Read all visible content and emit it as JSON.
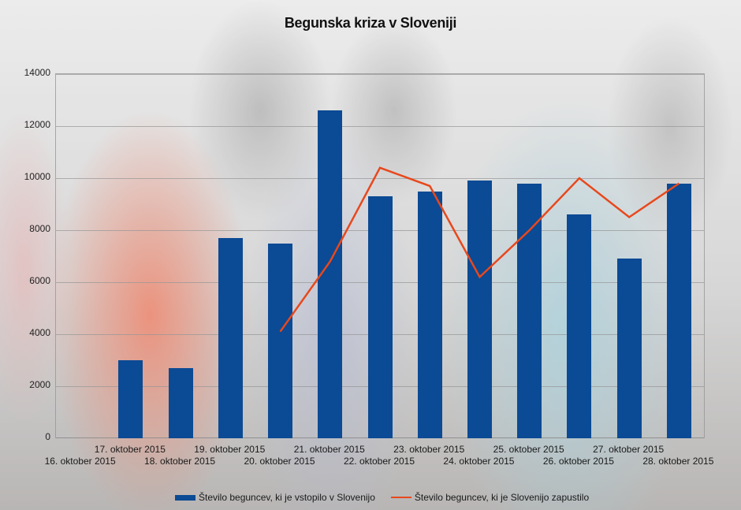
{
  "chart_data": {
    "type": "bar",
    "title": "Begunska kriza v Sloveniji",
    "xlabel": "",
    "ylabel": "",
    "ylim": [
      0,
      14000
    ],
    "yticks": [
      0,
      2000,
      4000,
      6000,
      8000,
      10000,
      12000,
      14000
    ],
    "grid": true,
    "legend_position": "bottom",
    "categories": [
      "16. oktober 2015",
      "17. oktober 2015",
      "18. oktober 2015",
      "19. oktober 2015",
      "20. oktober 2015",
      "21. oktober 2015",
      "22. oktober 2015",
      "23. oktober 2015",
      "24. oktober 2015",
      "25. oktober 2015",
      "26. oktober 2015",
      "27. oktober 2015",
      "28. oktober 2015"
    ],
    "series": [
      {
        "name": "Število beguncev, ki je vstopilo v Slovenijo",
        "type": "bar",
        "color": "#0b4a94",
        "values": [
          null,
          3000,
          2700,
          7700,
          7500,
          12600,
          9300,
          9500,
          9900,
          9800,
          8600,
          6900,
          9800
        ]
      },
      {
        "name": "Število beguncev, ki je Slovenijo zapustilo",
        "type": "line",
        "color": "#e8481c",
        "values": [
          null,
          null,
          null,
          null,
          4100,
          6800,
          10400,
          9700,
          6200,
          8000,
          10000,
          8500,
          9800
        ]
      }
    ]
  },
  "legend": {
    "bar_label": "Število beguncev, ki je vstopilo v Slovenijo",
    "line_label": "Število beguncev, ki je Slovenijo zapustilo"
  }
}
